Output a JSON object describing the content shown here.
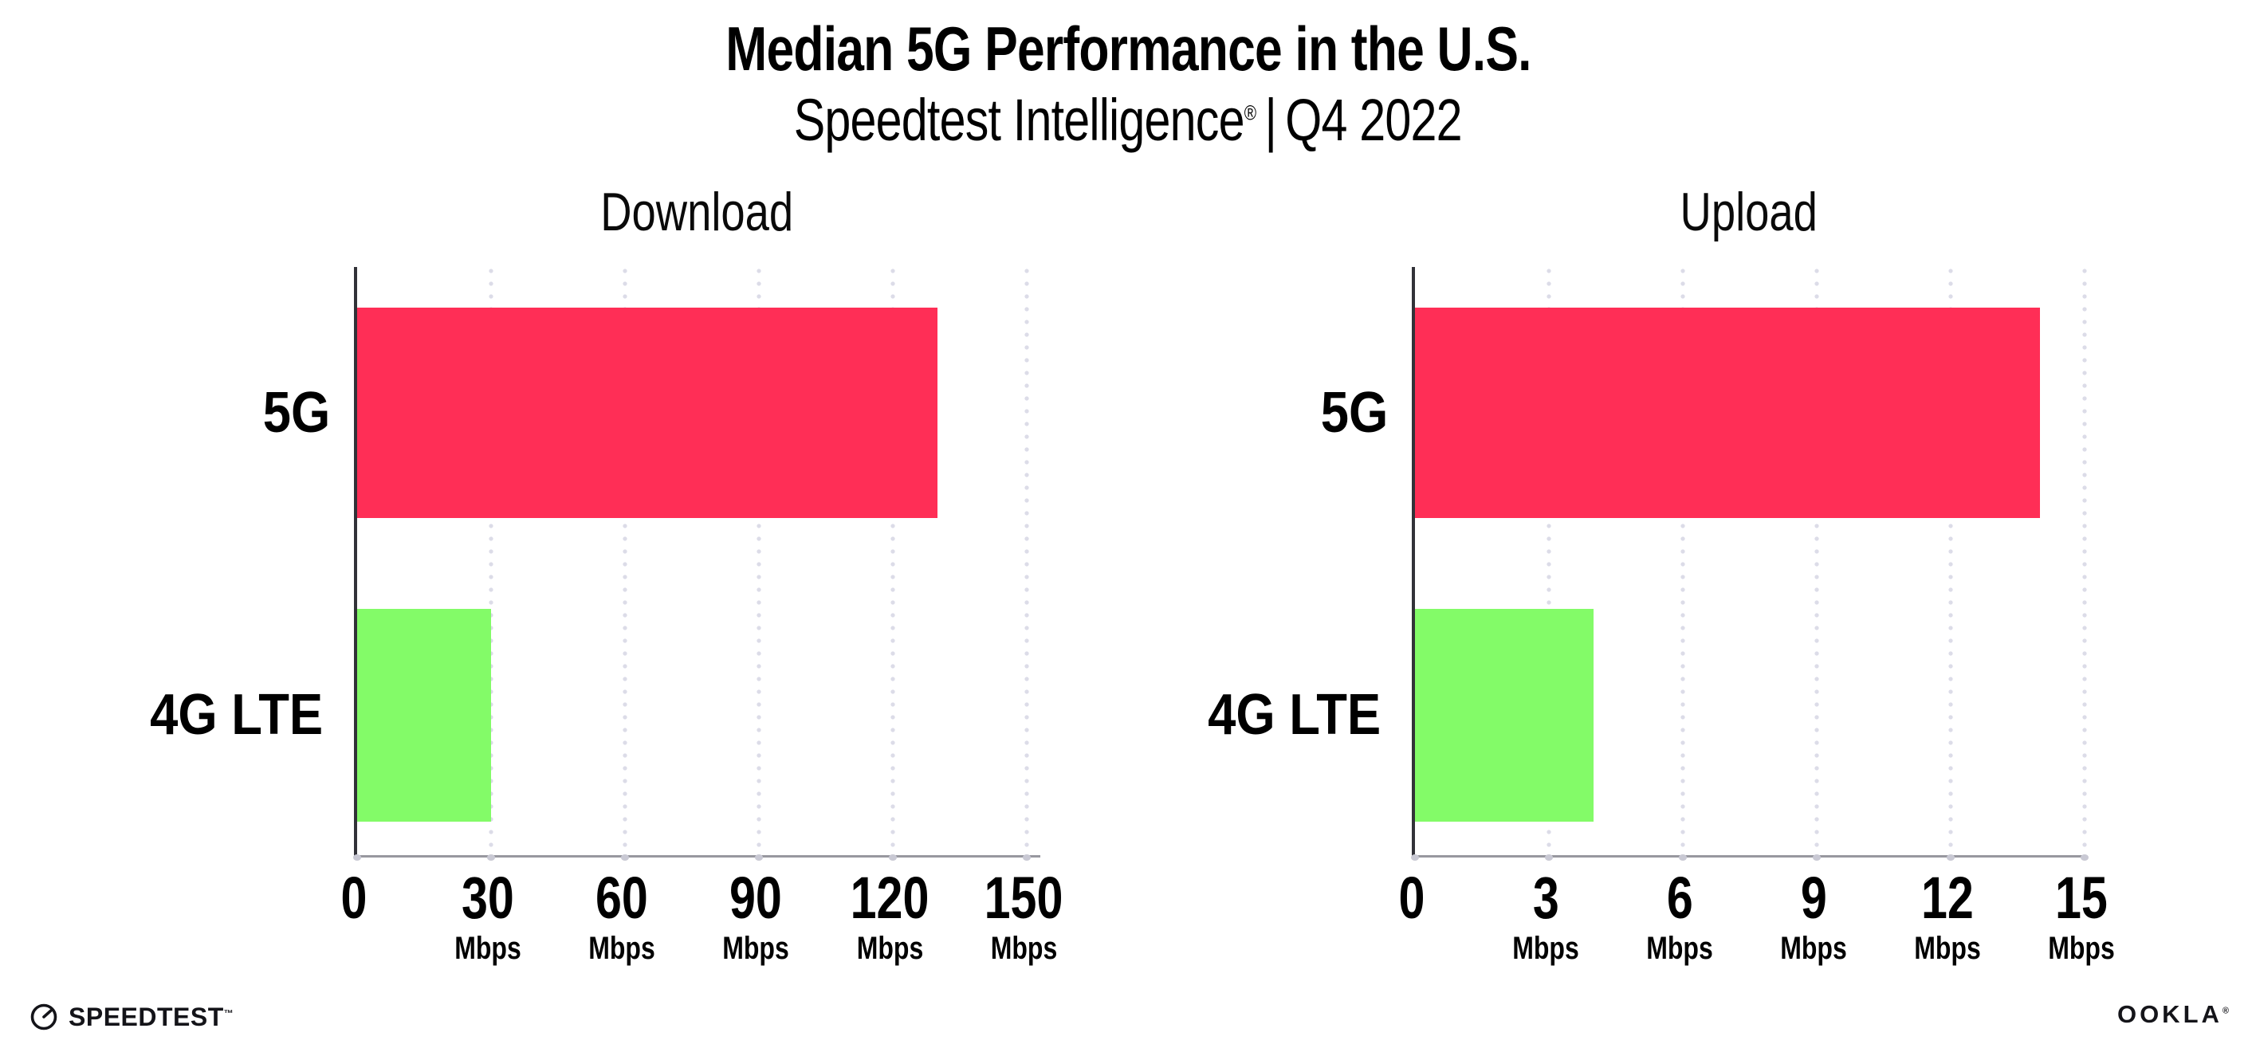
{
  "page": {
    "title": "Median 5G Performance in the U.S.",
    "subtitle": {
      "brand": "Speedtest Intelligence",
      "registered": "®",
      "separator": "|",
      "period": "Q4 2022"
    }
  },
  "colors": {
    "bar_5g": "#ff2e56",
    "bar_4g": "#83fb68",
    "gridline": "#dcdce8",
    "axis_left_spine": "#323238",
    "axis_bottom_spine": "#98989f",
    "text": "#000000",
    "background": "#ffffff"
  },
  "chart_data": [
    {
      "type": "bar",
      "orientation": "horizontal",
      "title": "Download",
      "categories": [
        "5G",
        "4G LTE"
      ],
      "values": [
        130,
        30
      ],
      "unit": "Mbps",
      "xlim": [
        0,
        150
      ],
      "xticks": [
        0,
        30,
        60,
        90,
        120,
        150
      ],
      "bar_colors": [
        "#ff2e56",
        "#83fb68"
      ],
      "grid": "dotted-vertical",
      "legend": "none"
    },
    {
      "type": "bar",
      "orientation": "horizontal",
      "title": "Upload",
      "categories": [
        "5G",
        "4G LTE"
      ],
      "values": [
        14,
        4
      ],
      "unit": "Mbps",
      "xlim": [
        0,
        15
      ],
      "xticks": [
        0,
        3,
        6,
        9,
        12,
        15
      ],
      "bar_colors": [
        "#ff2e56",
        "#83fb68"
      ],
      "grid": "dotted-vertical",
      "legend": "none"
    }
  ],
  "footer": {
    "speedtest_label": "SPEEDTEST",
    "speedtest_trademark": "™",
    "ookla_label": "OOKLA",
    "ookla_registered": "®"
  }
}
